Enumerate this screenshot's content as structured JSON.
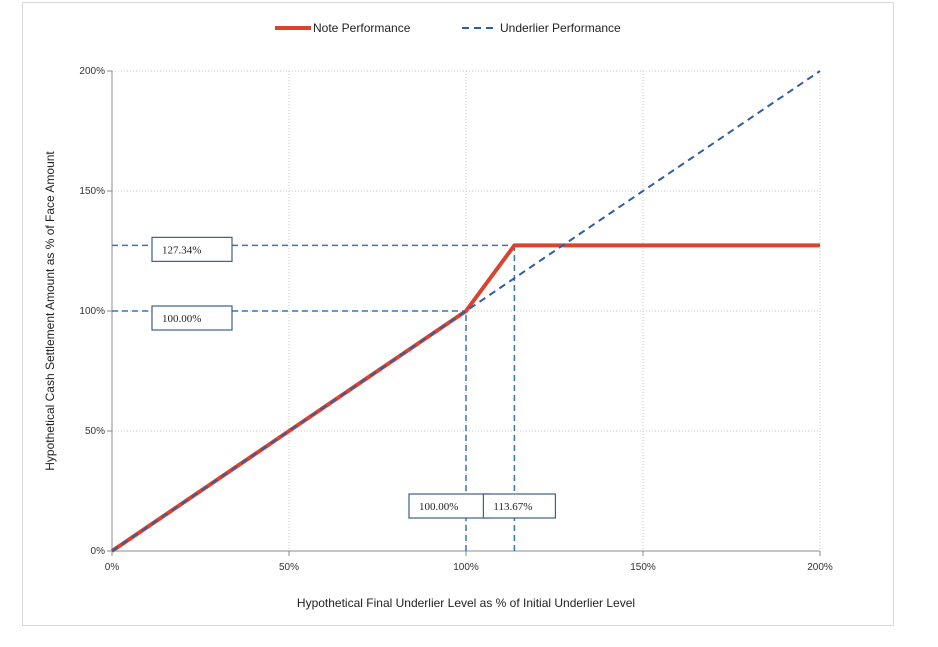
{
  "chart_data": {
    "type": "line",
    "title": "",
    "xlabel": "Hypothetical Final Underlier Level as % of Initial Underlier Level",
    "ylabel": "Hypothetical Cash Settlement Amount as % of Face Amount",
    "xlim": [
      0,
      200
    ],
    "ylim": [
      0,
      200
    ],
    "x_ticks": [
      0,
      50,
      100,
      150,
      200
    ],
    "y_ticks": [
      0,
      50,
      100,
      150,
      200
    ],
    "x_tick_labels": [
      "0%",
      "50%",
      "100%",
      "150%",
      "200%"
    ],
    "y_tick_labels": [
      "0%",
      "50%",
      "100%",
      "150%",
      "200%"
    ],
    "grid": true,
    "legend_position": "top-center",
    "series": [
      {
        "name": "Note Performance",
        "color": "#d9432f",
        "style": "solid",
        "x": [
          0,
          100,
          113.67,
          200
        ],
        "y": [
          0,
          100,
          127.34,
          127.34
        ]
      },
      {
        "name": "Underlier Performance",
        "color": "#2e5fa3",
        "style": "dashed",
        "x": [
          0,
          200
        ],
        "y": [
          0,
          200
        ]
      }
    ],
    "reference_lines": [
      {
        "orientation": "horizontal",
        "value": 127.34,
        "from": 0,
        "to": 113.67
      },
      {
        "orientation": "horizontal",
        "value": 100,
        "from": 0,
        "to": 100
      },
      {
        "orientation": "vertical",
        "value": 100,
        "from": 0,
        "to": 100
      },
      {
        "orientation": "vertical",
        "value": 113.67,
        "from": 0,
        "to": 127.34
      }
    ],
    "annotations": [
      {
        "text": "127.34%",
        "axis": "y",
        "value": 127.34
      },
      {
        "text": "100.00%",
        "axis": "y",
        "value": 100
      },
      {
        "text": "100.00%",
        "axis": "x",
        "value": 100
      },
      {
        "text": "113.67%",
        "axis": "x",
        "value": 113.67
      }
    ]
  }
}
